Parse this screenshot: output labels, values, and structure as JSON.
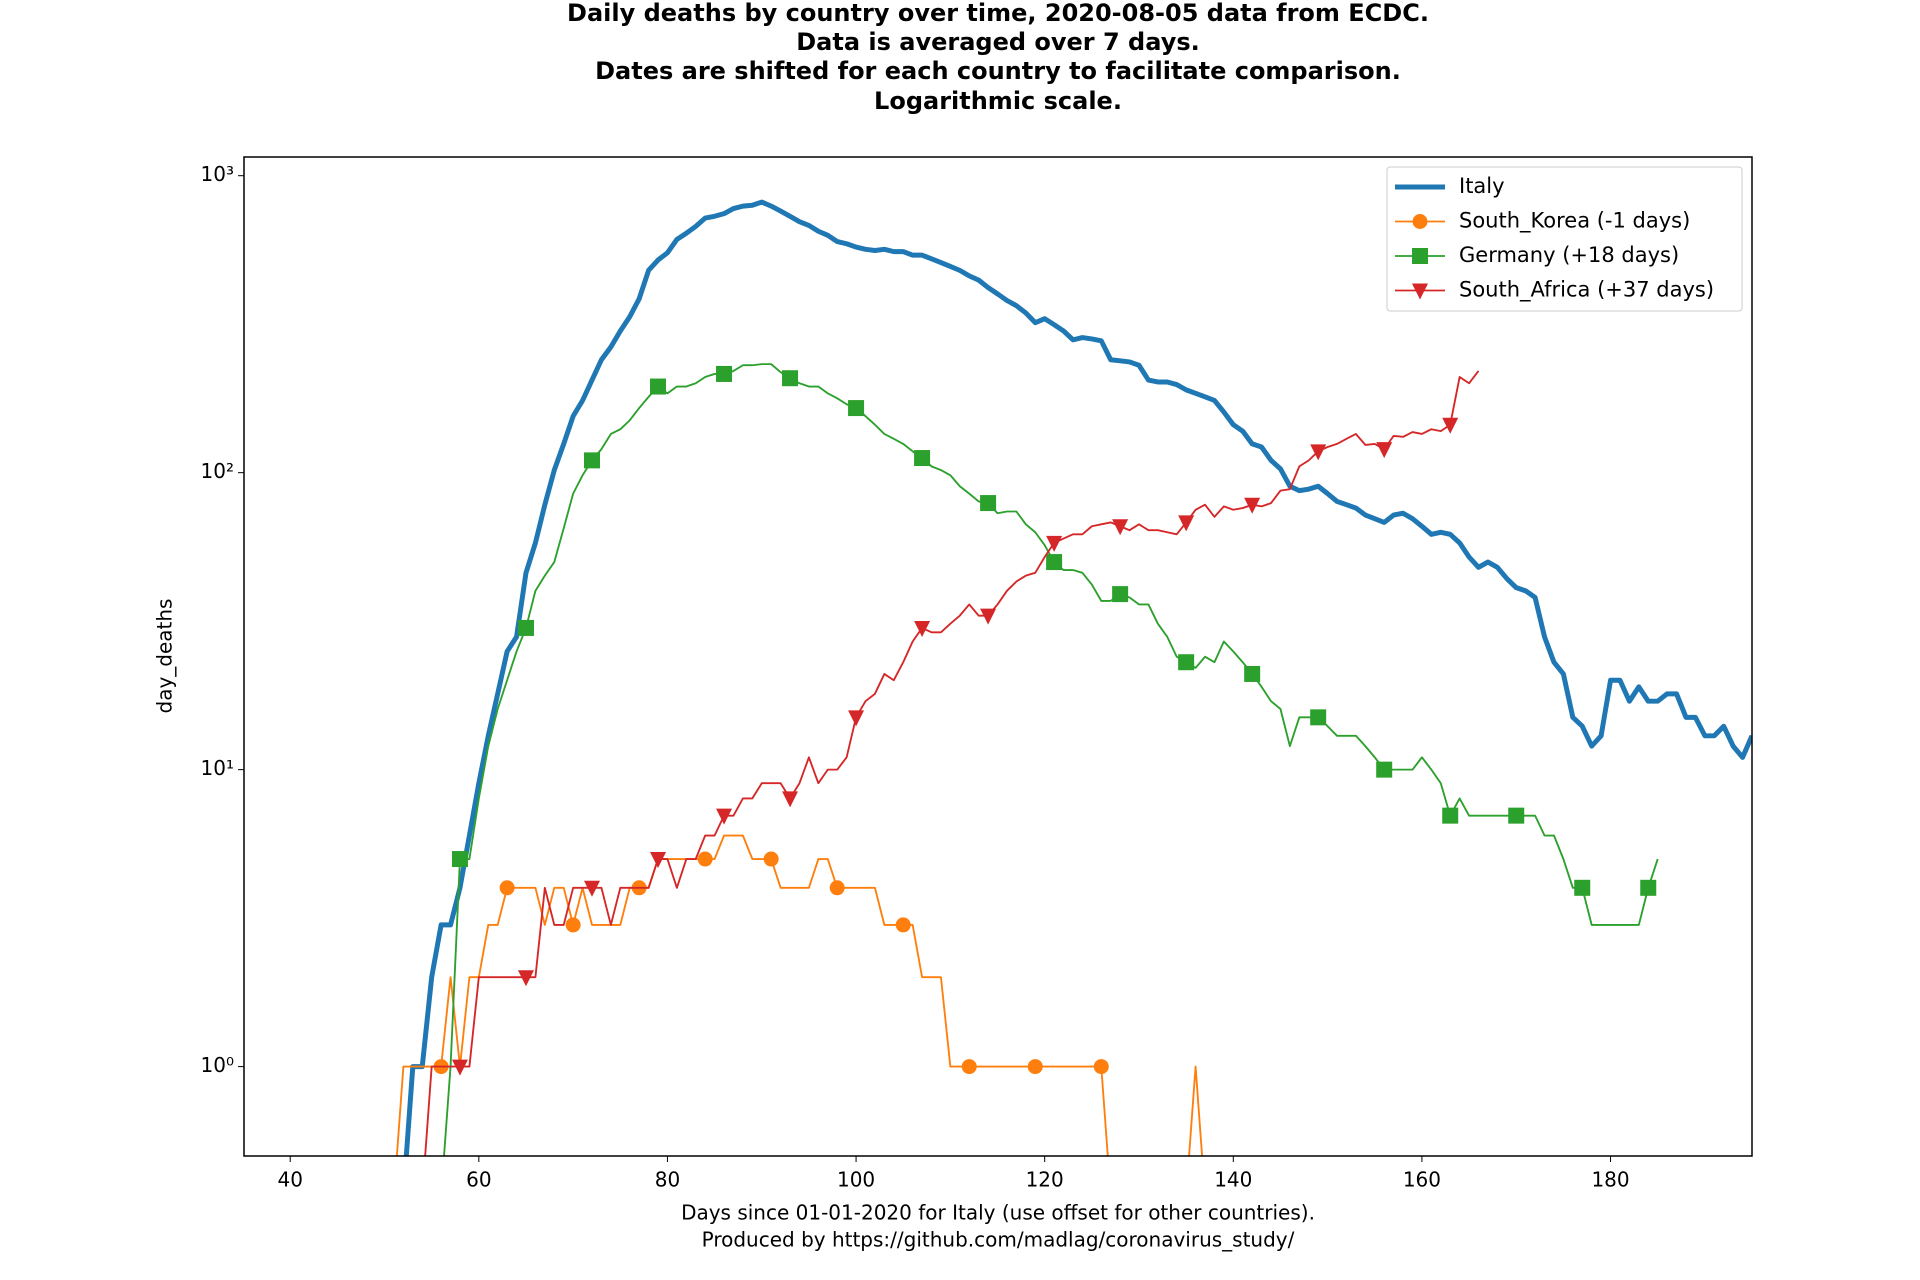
{
  "chart_data": {
    "type": "line",
    "title": [
      "Daily deaths by country over time, 2020-08-05 data from ECDC.",
      "Data is averaged over 7 days.",
      "Dates are shifted for each country to facilitate comparison.",
      "Logarithmic scale."
    ],
    "xlabel": [
      "Days since 01-01-2020 for Italy (use offset for other countries).",
      "Produced by https://github.com/madlag/coronavirus_study/"
    ],
    "ylabel": "day_deaths",
    "xlim": [
      35.1,
      195
    ],
    "ylim": [
      0.5,
      1156
    ],
    "log_y": true,
    "xticks": [
      40,
      60,
      80,
      100,
      120,
      140,
      160,
      180
    ],
    "yticks": [
      {
        "value": 1,
        "label": "10⁰"
      },
      {
        "value": 10,
        "label": "10¹"
      },
      {
        "value": 100,
        "label": "10²"
      },
      {
        "value": 1000,
        "label": "10³"
      }
    ],
    "legend": "upper right",
    "series": [
      {
        "name": "Italy",
        "color": "#1f77b4",
        "linewidth": 4,
        "marker": "none",
        "markevery": 7,
        "x": [
          52,
          53,
          54,
          55,
          56,
          57,
          58,
          59,
          60,
          61,
          62,
          63,
          64,
          65,
          66,
          67,
          68,
          69,
          70,
          71,
          72,
          73,
          74,
          75,
          76,
          77,
          78,
          79,
          80,
          81,
          82,
          83,
          84,
          85,
          86,
          87,
          88,
          89,
          90,
          91,
          92,
          93,
          94,
          95,
          96,
          97,
          98,
          99,
          100,
          101,
          102,
          103,
          104,
          105,
          106,
          107,
          108,
          109,
          110,
          111,
          112,
          113,
          114,
          115,
          116,
          117,
          118,
          119,
          120,
          121,
          122,
          123,
          124,
          125,
          126,
          127,
          128,
          129,
          130,
          131,
          132,
          133,
          134,
          135,
          136,
          137,
          138,
          139,
          140,
          141,
          142,
          143,
          144,
          145,
          146,
          147,
          148,
          149,
          150,
          151,
          152,
          153,
          154,
          155,
          156,
          157,
          158,
          159,
          160,
          161,
          162,
          163,
          164,
          165,
          166,
          167,
          168,
          169,
          170,
          171,
          172,
          173,
          174,
          175,
          176,
          177,
          178,
          179,
          180,
          181,
          182,
          183,
          184,
          185,
          186,
          187,
          188,
          189,
          190,
          191,
          192,
          193,
          194,
          195
        ],
        "values": [
          0,
          1,
          1,
          2,
          3,
          3,
          4,
          6,
          9,
          13,
          18,
          25,
          28,
          46,
          58,
          78,
          102,
          125,
          155,
          175,
          205,
          240,
          265,
          300,
          335,
          385,
          480,
          520,
          550,
          610,
          640,
          675,
          720,
          730,
          745,
          775,
          790,
          795,
          815,
          790,
          760,
          730,
          700,
          680,
          650,
          630,
          600,
          590,
          575,
          565,
          560,
          565,
          555,
          555,
          540,
          540,
          525,
          510,
          495,
          480,
          460,
          445,
          420,
          400,
          380,
          365,
          345,
          320,
          330,
          315,
          300,
          280,
          285,
          282,
          278,
          240,
          238,
          236,
          230,
          205,
          202,
          202,
          198,
          190,
          185,
          180,
          175,
          160,
          145,
          138,
          125,
          122,
          110,
          103,
          90,
          87,
          88,
          90,
          85,
          80,
          78,
          76,
          72,
          70,
          68,
          72,
          73,
          70,
          66,
          62,
          63,
          62,
          58,
          52,
          48,
          50,
          48,
          44,
          41,
          40,
          38,
          28,
          23,
          21,
          15,
          14,
          12,
          13,
          20,
          20,
          17,
          19,
          17,
          17,
          18,
          18,
          15,
          15,
          13,
          13,
          14,
          12,
          11,
          13
        ]
      },
      {
        "name": "South_Korea (-1 days)",
        "color": "#ff7f0e",
        "linewidth": 1.5,
        "marker": "circle",
        "markevery": 7,
        "x": [
          49,
          50,
          51,
          52,
          53,
          54,
          55,
          56,
          57,
          58,
          59,
          60,
          61,
          62,
          63,
          64,
          65,
          66,
          67,
          68,
          69,
          70,
          71,
          72,
          73,
          74,
          75,
          76,
          77,
          78,
          79,
          80,
          81,
          82,
          83,
          84,
          85,
          86,
          87,
          88,
          89,
          90,
          91,
          92,
          93,
          94,
          95,
          96,
          97,
          98,
          99,
          100,
          101,
          102,
          103,
          104,
          105,
          106,
          107,
          108,
          109,
          110,
          111,
          112,
          113,
          114,
          115,
          116,
          117,
          118,
          119,
          120,
          121,
          122,
          123,
          124,
          125,
          126,
          127,
          128,
          129,
          130,
          131,
          132,
          133,
          134,
          135,
          136,
          137
        ],
        "values": [
          0,
          0,
          0,
          1,
          1,
          1,
          1,
          1,
          2,
          1,
          2,
          2,
          3,
          3,
          4,
          4,
          4,
          4,
          3,
          4,
          4,
          3,
          4,
          3,
          3,
          3,
          3,
          4,
          4,
          4,
          5,
          5,
          5,
          5,
          5,
          5,
          5,
          6,
          6,
          6,
          5,
          5,
          5,
          4,
          4,
          4,
          4,
          5,
          5,
          4,
          4,
          4,
          4,
          4,
          3,
          3,
          3,
          3,
          2,
          2,
          2,
          1,
          1,
          1,
          1,
          1,
          1,
          1,
          1,
          1,
          1,
          1,
          1,
          1,
          1,
          1,
          1,
          1,
          0,
          0,
          0,
          0,
          0,
          0,
          0,
          0,
          0,
          1,
          0
        ]
      },
      {
        "name": "Germany (+18 days)",
        "color": "#2ca02c",
        "linewidth": 1.5,
        "marker": "square",
        "markevery": 7,
        "x": [
          51,
          52,
          53,
          54,
          55,
          56,
          57,
          58,
          59,
          60,
          61,
          62,
          63,
          64,
          65,
          66,
          67,
          68,
          69,
          70,
          71,
          72,
          73,
          74,
          75,
          76,
          77,
          78,
          79,
          80,
          81,
          82,
          83,
          84,
          85,
          86,
          87,
          88,
          89,
          90,
          91,
          92,
          93,
          94,
          95,
          96,
          97,
          98,
          99,
          100,
          101,
          102,
          103,
          104,
          105,
          106,
          107,
          108,
          109,
          110,
          111,
          112,
          113,
          114,
          115,
          116,
          117,
          118,
          119,
          120,
          121,
          122,
          123,
          124,
          125,
          126,
          127,
          128,
          129,
          130,
          131,
          132,
          133,
          134,
          135,
          136,
          137,
          138,
          139,
          140,
          141,
          142,
          143,
          144,
          145,
          146,
          147,
          148,
          149,
          150,
          151,
          152,
          153,
          154,
          155,
          156,
          157,
          158,
          159,
          160,
          161,
          162,
          163,
          164,
          165,
          166,
          167,
          168,
          169,
          170,
          171,
          172,
          173,
          174,
          175,
          176,
          177,
          178,
          179,
          180,
          181,
          182,
          183,
          184,
          185
        ],
        "values": [
          0,
          0,
          0,
          0,
          0,
          0,
          1,
          5,
          5,
          8,
          12,
          16,
          20,
          25,
          30,
          40,
          45,
          50,
          65,
          85,
          98,
          110,
          120,
          135,
          140,
          150,
          165,
          180,
          195,
          185,
          195,
          195,
          200,
          210,
          215,
          215,
          220,
          230,
          230,
          232,
          232,
          218,
          208,
          200,
          195,
          195,
          185,
          178,
          170,
          165,
          155,
          145,
          135,
          130,
          125,
          118,
          112,
          105,
          102,
          98,
          90,
          85,
          80,
          79,
          73,
          74,
          74,
          67,
          63,
          57,
          50,
          47,
          47,
          46,
          42,
          37,
          37,
          39,
          38,
          36,
          36,
          31,
          28,
          24,
          23,
          22,
          24,
          23,
          27,
          25,
          23,
          21,
          19,
          17,
          16,
          12,
          15,
          15,
          15,
          14,
          13,
          13,
          13,
          12,
          11,
          10,
          10,
          10,
          10,
          11,
          10,
          9,
          7,
          8,
          7,
          7,
          7,
          7,
          7,
          7,
          7,
          7,
          6,
          6,
          5,
          4,
          4,
          3,
          3,
          3,
          3,
          3,
          3,
          4,
          5
        ]
      },
      {
        "name": "South_Africa (+37 days)",
        "color": "#d62728",
        "linewidth": 1.5,
        "marker": "triangle-down",
        "markevery": 7,
        "x": [
          51,
          52,
          53,
          54,
          55,
          56,
          57,
          58,
          59,
          60,
          61,
          62,
          63,
          64,
          65,
          66,
          67,
          68,
          69,
          70,
          71,
          72,
          73,
          74,
          75,
          76,
          77,
          78,
          79,
          80,
          81,
          82,
          83,
          84,
          85,
          86,
          87,
          88,
          89,
          90,
          91,
          92,
          93,
          94,
          95,
          96,
          97,
          98,
          99,
          100,
          101,
          102,
          103,
          104,
          105,
          106,
          107,
          108,
          109,
          110,
          111,
          112,
          113,
          114,
          115,
          116,
          117,
          118,
          119,
          120,
          121,
          122,
          123,
          124,
          125,
          126,
          127,
          128,
          129,
          130,
          131,
          132,
          133,
          134,
          135,
          136,
          137,
          138,
          139,
          140,
          141,
          142,
          143,
          144,
          145,
          146,
          147,
          148,
          149,
          150,
          151,
          152,
          153,
          154,
          155,
          156,
          157,
          158,
          159,
          160,
          161,
          162,
          163,
          164,
          165,
          166
        ],
        "values": [
          0,
          0,
          0,
          0,
          1,
          1,
          1,
          1,
          1,
          2,
          2,
          2,
          2,
          2,
          2,
          2,
          4,
          3,
          3,
          4,
          4,
          4,
          4,
          3,
          4,
          4,
          4,
          4,
          5,
          5,
          4,
          5,
          5,
          6,
          6,
          7,
          7,
          8,
          8,
          9,
          9,
          9,
          8,
          9,
          11,
          9,
          10,
          10,
          11,
          15,
          17,
          18,
          21,
          20,
          23,
          27,
          30,
          29,
          29,
          31,
          33,
          36,
          33,
          33,
          36,
          40,
          43,
          45,
          46,
          52,
          58,
          60,
          62,
          62,
          66,
          67,
          68,
          66,
          64,
          67,
          64,
          64,
          63,
          62,
          68,
          75,
          78,
          71,
          77,
          75,
          76,
          78,
          77,
          79,
          87,
          88,
          105,
          110,
          118,
          122,
          125,
          130,
          135,
          124,
          125,
          120,
          133,
          132,
          137,
          135,
          140,
          138,
          145,
          210,
          200,
          220
        ]
      }
    ]
  }
}
